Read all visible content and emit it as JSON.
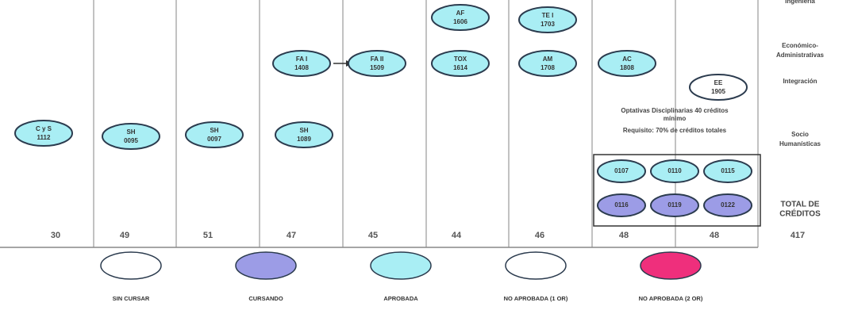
{
  "nodes": [
    {
      "label": "C y S",
      "code": "1112"
    },
    {
      "label": "SH",
      "code": "0095"
    },
    {
      "label": "SH",
      "code": "0097"
    },
    {
      "label": "SH",
      "code": "1089"
    },
    {
      "label": "FA I",
      "code": "1408"
    },
    {
      "label": "FA II",
      "code": "1509"
    },
    {
      "label": "AF",
      "code": "1606"
    },
    {
      "label": "TOX",
      "code": "1614"
    },
    {
      "label": "TE I",
      "code": "1703"
    },
    {
      "label": "AM",
      "code": "1708"
    },
    {
      "label": "AC",
      "code": "1808"
    },
    {
      "label": "EE",
      "code": "1905"
    }
  ],
  "electives": {
    "note": [
      "Optativas Disciplinarias 40 créditos",
      "mínimo",
      "Requisito: 70% de créditos totales"
    ],
    "codes": [
      "0107",
      "0110",
      "0115",
      "0116",
      "0119",
      "0122"
    ]
  },
  "areas": [
    "Ingeniería",
    "Económico-",
    "Administrativas",
    "Integración",
    "Socio",
    "Humanísticas",
    "TOTAL DE",
    "CRÉDITOS"
  ],
  "credits": [
    "30",
    "49",
    "51",
    "47",
    "45",
    "44",
    "46",
    "48",
    "48",
    "417"
  ],
  "legend": [
    "SIN CURSAR",
    "CURSANDO",
    "APROBADA",
    "NO APROBADA (1 OR)",
    "NO APROBADA (2 OR)"
  ]
}
